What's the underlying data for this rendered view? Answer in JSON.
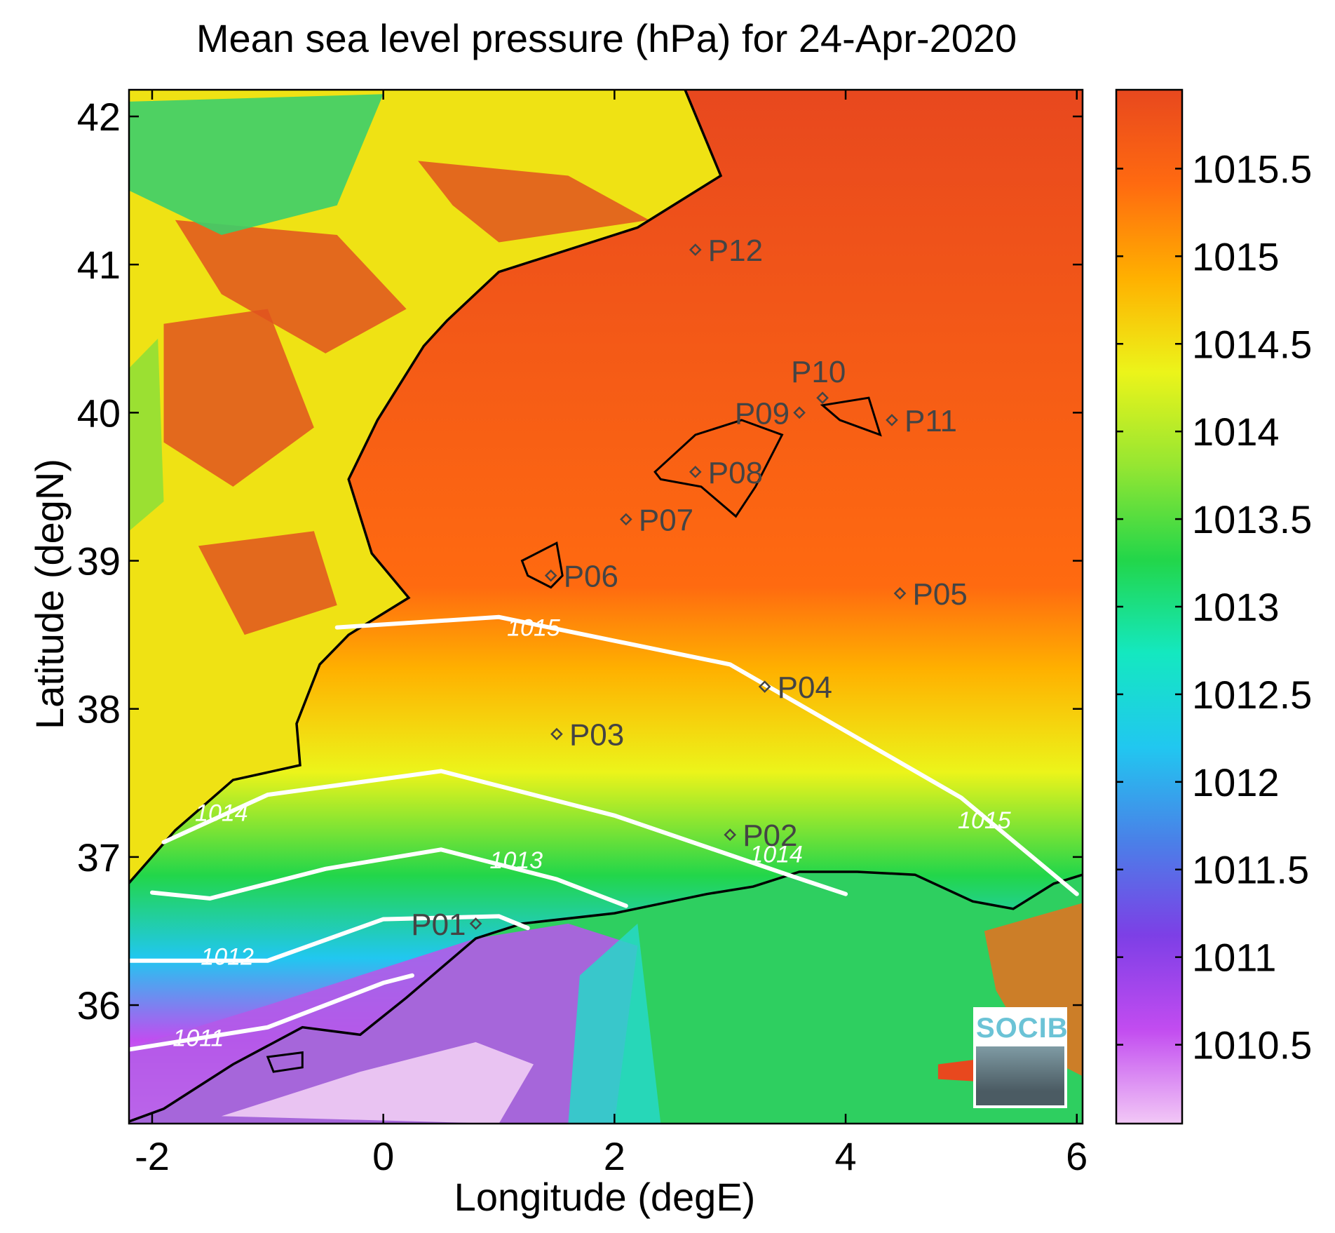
{
  "title": "Mean sea level pressure (hPa) for 24-Apr-2020",
  "logo_text": "SOCIB",
  "chart_data": {
    "type": "heatmap",
    "title": "Mean sea level pressure (hPa) for 24-Apr-2020",
    "xlabel": "Longitude (degE)",
    "ylabel": "Latitude (degN)",
    "xlim": [
      -2.2,
      6.05
    ],
    "ylim": [
      35.2,
      42.18
    ],
    "x_ticks": [
      -2,
      0,
      2,
      4,
      6
    ],
    "y_ticks": [
      36,
      37,
      38,
      39,
      40,
      41,
      42
    ],
    "colorbar": {
      "range": [
        1010.05,
        1015.95
      ],
      "ticks": [
        1010.5,
        1011,
        1011.5,
        1012,
        1012.5,
        1013,
        1013.5,
        1014,
        1014.5,
        1015,
        1015.5
      ],
      "colormap": [
        "#f2c8f6",
        "#c24cf0",
        "#7d3fe6",
        "#4a80e8",
        "#21c7f0",
        "#14e8c0",
        "#22d64a",
        "#95e632",
        "#ecf41a",
        "#ffb000",
        "#ff6a10",
        "#e8481e"
      ]
    },
    "contours": [
      {
        "level": 1015,
        "label": "1015",
        "points": [
          [
            -0.4,
            38.55
          ],
          [
            1.0,
            38.62
          ],
          [
            3.0,
            38.3
          ],
          [
            5.0,
            37.4
          ],
          [
            6.0,
            36.75
          ]
        ]
      },
      {
        "level": 1014,
        "label": "1014",
        "points": [
          [
            -1.9,
            37.1
          ],
          [
            -1.0,
            37.42
          ],
          [
            0.5,
            37.58
          ],
          [
            2.0,
            37.28
          ],
          [
            3.5,
            36.88
          ],
          [
            4.0,
            36.75
          ]
        ]
      },
      {
        "level": 1013,
        "label": "1013",
        "points": [
          [
            -2.0,
            36.76
          ],
          [
            -1.5,
            36.72
          ],
          [
            -0.5,
            36.92
          ],
          [
            0.5,
            37.05
          ],
          [
            1.5,
            36.85
          ],
          [
            2.1,
            36.67
          ]
        ]
      },
      {
        "level": 1012,
        "label": "1012",
        "points": [
          [
            -2.2,
            36.3
          ],
          [
            -1.0,
            36.3
          ],
          [
            0.0,
            36.58
          ],
          [
            1.0,
            36.6
          ],
          [
            1.25,
            36.52
          ]
        ]
      },
      {
        "level": 1011,
        "label": "1011",
        "points": [
          [
            -2.2,
            35.7
          ],
          [
            -1.0,
            35.85
          ],
          [
            0.0,
            36.15
          ],
          [
            0.25,
            36.2
          ]
        ]
      }
    ],
    "points": [
      {
        "label": "P01",
        "lon": 0.8,
        "lat": 36.55
      },
      {
        "label": "P02",
        "lon": 3.0,
        "lat": 37.15
      },
      {
        "label": "P03",
        "lon": 1.5,
        "lat": 37.83
      },
      {
        "label": "P04",
        "lon": 3.3,
        "lat": 38.15
      },
      {
        "label": "P05",
        "lon": 4.47,
        "lat": 38.78
      },
      {
        "label": "P06",
        "lon": 1.45,
        "lat": 38.9
      },
      {
        "label": "P07",
        "lon": 2.1,
        "lat": 39.28
      },
      {
        "label": "P08",
        "lon": 2.7,
        "lat": 39.6
      },
      {
        "label": "P09",
        "lon": 3.6,
        "lat": 40.0
      },
      {
        "label": "P10",
        "lon": 3.8,
        "lat": 40.1
      },
      {
        "label": "P11",
        "lon": 4.4,
        "lat": 39.95
      },
      {
        "label": "P12",
        "lon": 2.7,
        "lat": 41.1
      }
    ]
  }
}
